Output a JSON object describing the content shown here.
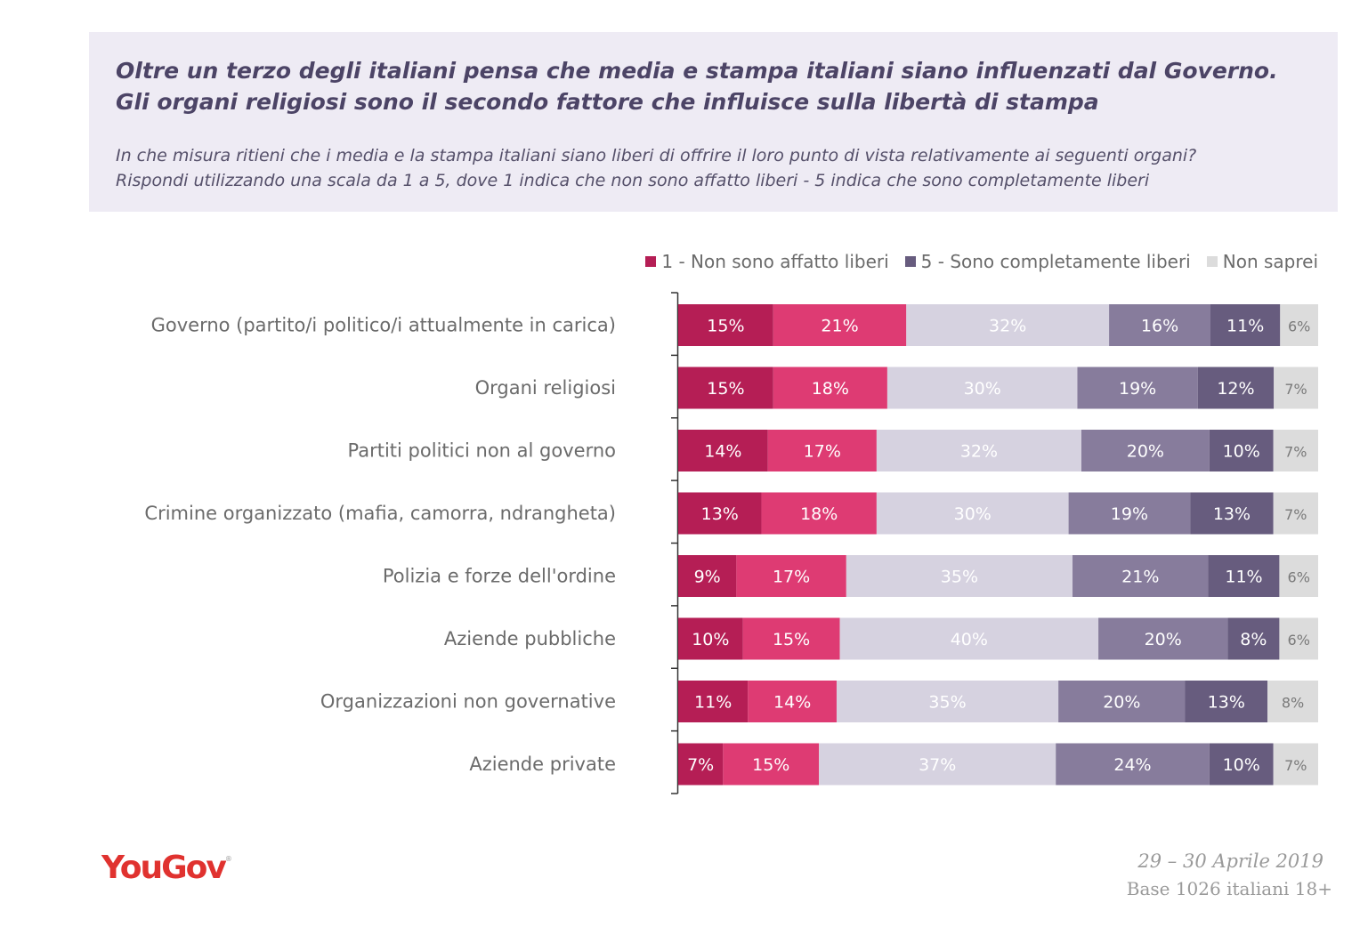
{
  "header": {
    "title": "Oltre un terzo degli italiani pensa che media e stampa italiani siano influenzati dal Governo. Gli organi religiosi sono il secondo fattore che influisce sulla libertà di stampa",
    "subtitle_line1": "In che misura ritieni che i media e la stampa italiani siano liberi di offrire il loro punto di vista relativamente ai seguenti organi?",
    "subtitle_line2": "Rispondi utilizzando una scala da 1 a 5, dove 1 indica che non sono affatto liberi - 5 indica che sono completamente liberi"
  },
  "legend": {
    "item1": "1 - Non sono affatto liberi",
    "item2": "5 - Sono completamente liberi",
    "item3": "Non saprei"
  },
  "colors": {
    "s1": "#b51e55",
    "s2": "#de3b73",
    "s3": "#d6d2e0",
    "s4": "#877c9c",
    "s5": "#675c7e",
    "s6": "#dcdcdc"
  },
  "chart_data": {
    "type": "bar",
    "orientation": "horizontal",
    "stacked": true,
    "categories": [
      "Governo (partito/i politico/i attualmente in carica)",
      "Organi religiosi",
      "Partiti politici non al governo",
      "Crimine organizzato (mafia, camorra, ndrangheta)",
      "Polizia e forze dell'ordine",
      "Aziende pubbliche",
      "Organizzazioni non governative",
      "Aziende private"
    ],
    "series": [
      {
        "name": "1 - Non sono affatto liberi",
        "values": [
          15,
          15,
          14,
          13,
          9,
          10,
          11,
          7
        ]
      },
      {
        "values": [
          21,
          18,
          17,
          18,
          17,
          15,
          14,
          15
        ]
      },
      {
        "values": [
          32,
          30,
          32,
          30,
          35,
          40,
          35,
          37
        ]
      },
      {
        "values": [
          16,
          19,
          20,
          19,
          21,
          20,
          20,
          24
        ]
      },
      {
        "name": "5 - Sono completamente liberi",
        "values": [
          11,
          12,
          10,
          13,
          11,
          8,
          13,
          10
        ]
      },
      {
        "name": "Non saprei",
        "values": [
          6,
          7,
          7,
          7,
          6,
          6,
          8,
          7
        ]
      }
    ],
    "value_suffix": "%",
    "legend_position": "top-right",
    "grid": false
  },
  "footer": {
    "logo": "YouGov",
    "date": "29 – 30 Aprile 2019",
    "base": "Base 1026 italiani 18+"
  }
}
